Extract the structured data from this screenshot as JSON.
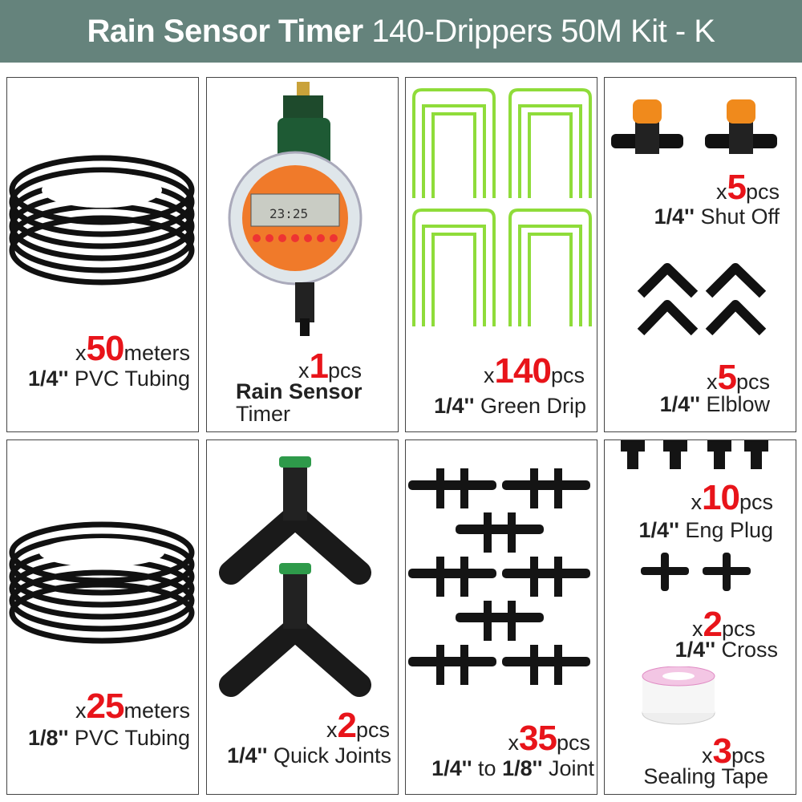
{
  "header": {
    "bold": "Rain Sensor Timer",
    "rest": " 140-Drippers 50M Kit - K",
    "background": "#65837c"
  },
  "accent": "#e8141a",
  "items": [
    {
      "x": "x",
      "qty": "50",
      "unit": "meters",
      "size": "1/4''",
      "name": " PVC Tubing"
    },
    {
      "x": "x",
      "qty": "1",
      "unit": "pcs",
      "size": "Rain Sensor",
      "name": "Timer"
    },
    {
      "x": "x",
      "qty": "140",
      "unit": "pcs",
      "size": "1/4''",
      "name": " Green Drip"
    },
    {
      "x": "x",
      "qty": "5",
      "unit": "pcs",
      "size": "1/4''",
      "name": " Shut Off"
    },
    {
      "x": "x",
      "qty": "5",
      "unit": "pcs",
      "size": "1/4''",
      "name": " Elblow"
    },
    {
      "x": "x",
      "qty": "25",
      "unit": "meters",
      "size": "1/8''",
      "name": " PVC Tubing"
    },
    {
      "x": "x",
      "qty": "2",
      "unit": "pcs",
      "size": "1/4''",
      "name": " Quick Joints"
    },
    {
      "x": "x",
      "qty": "35",
      "unit": "pcs",
      "size": "1/4''",
      "name": " to ",
      "size2": "1/8''",
      "name2": " Joint"
    },
    {
      "x": "x",
      "qty": "10",
      "unit": "pcs",
      "size": "1/4''",
      "name": " Eng Plug"
    },
    {
      "x": "x",
      "qty": "2",
      "unit": "pcs",
      "size": "1/4''",
      "name": " Cross"
    },
    {
      "x": "x",
      "qty": "3",
      "unit": "pcs",
      "name": "Sealing Tape"
    }
  ],
  "timer_display": "23:25"
}
